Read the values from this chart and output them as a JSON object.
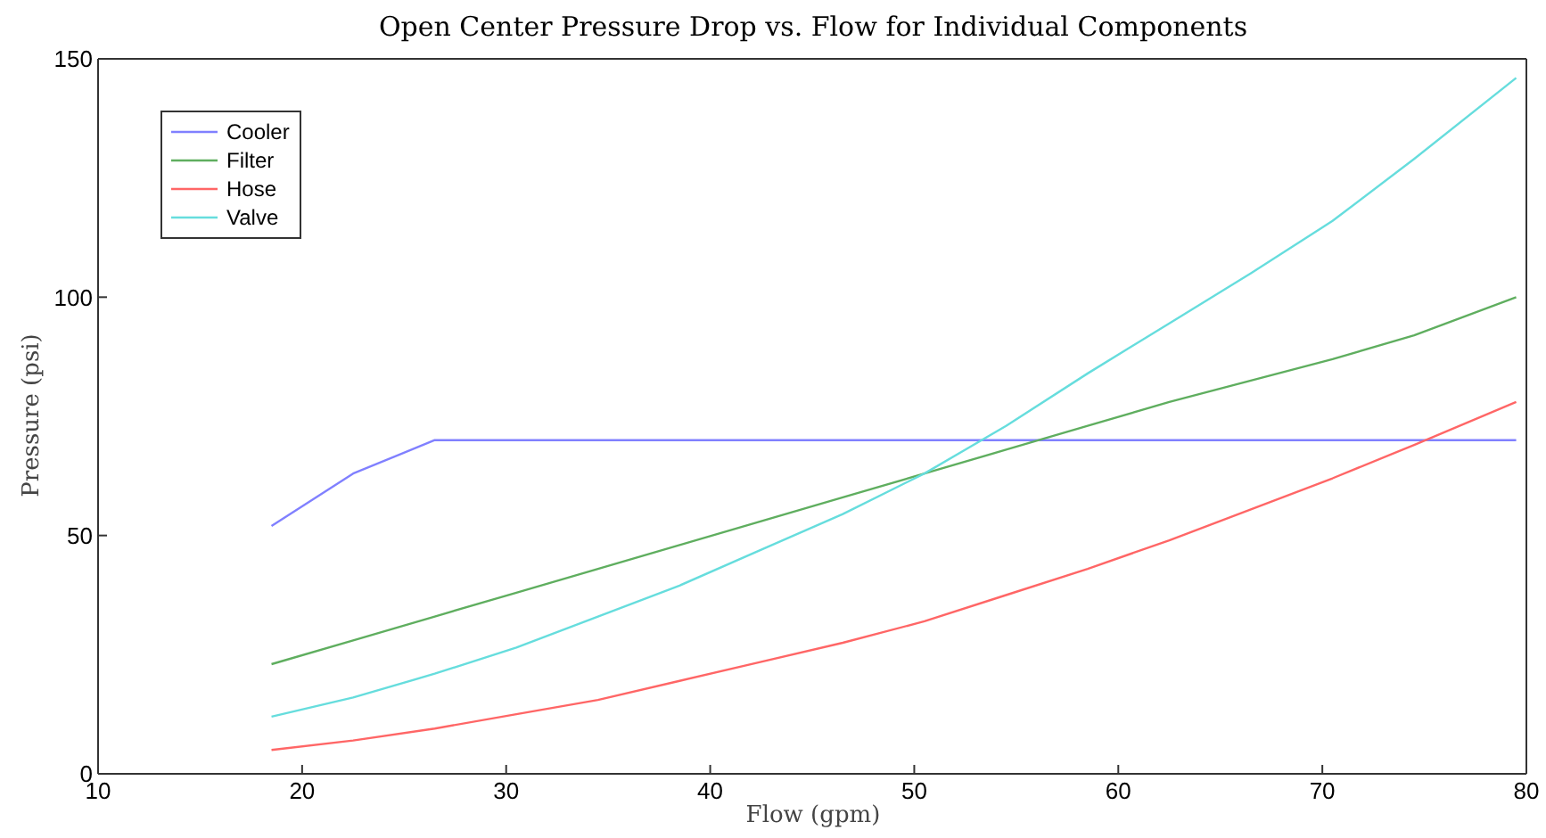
{
  "chart_data": {
    "type": "line",
    "title": "Open Center Pressure Drop vs. Flow for Individual Components",
    "xlabel": "Flow (gpm)",
    "ylabel": "Pressure (psi)",
    "x": [
      18.5,
      22.5,
      26.5,
      30.5,
      34.5,
      38.5,
      42.5,
      46.5,
      50.5,
      54.5,
      58.5,
      62.5,
      66.5,
      70.5,
      74.5,
      79.5
    ],
    "series": [
      {
        "name": "Cooler",
        "color": "#8080ff",
        "x": [
          18.5,
          22.5,
          26.5,
          79.5
        ],
        "values": [
          52,
          63,
          70,
          70
        ]
      },
      {
        "name": "Filter",
        "color": "#5fae5f",
        "values": [
          23,
          28,
          33,
          38,
          43,
          48,
          53,
          58,
          63,
          68,
          73,
          78,
          82.5,
          87,
          92,
          100
        ]
      },
      {
        "name": "Hose",
        "color": "#ff6666",
        "values": [
          5,
          7,
          9.5,
          12.5,
          15.5,
          19.5,
          23.5,
          27.5,
          32,
          37.5,
          43,
          49,
          55.5,
          62,
          69,
          78
        ]
      },
      {
        "name": "Valve",
        "color": "#66dddd",
        "values": [
          12,
          16,
          21,
          26.5,
          33,
          39.5,
          47,
          54.5,
          63,
          73,
          84,
          94.5,
          105,
          116,
          129,
          146
        ]
      }
    ],
    "xlim": [
      10,
      80
    ],
    "xticks": [
      10,
      20,
      30,
      40,
      50,
      60,
      70,
      80
    ],
    "ylim": [
      0,
      150
    ],
    "yticks": [
      0,
      50,
      100,
      150
    ],
    "grid": false,
    "legend": "top left"
  }
}
